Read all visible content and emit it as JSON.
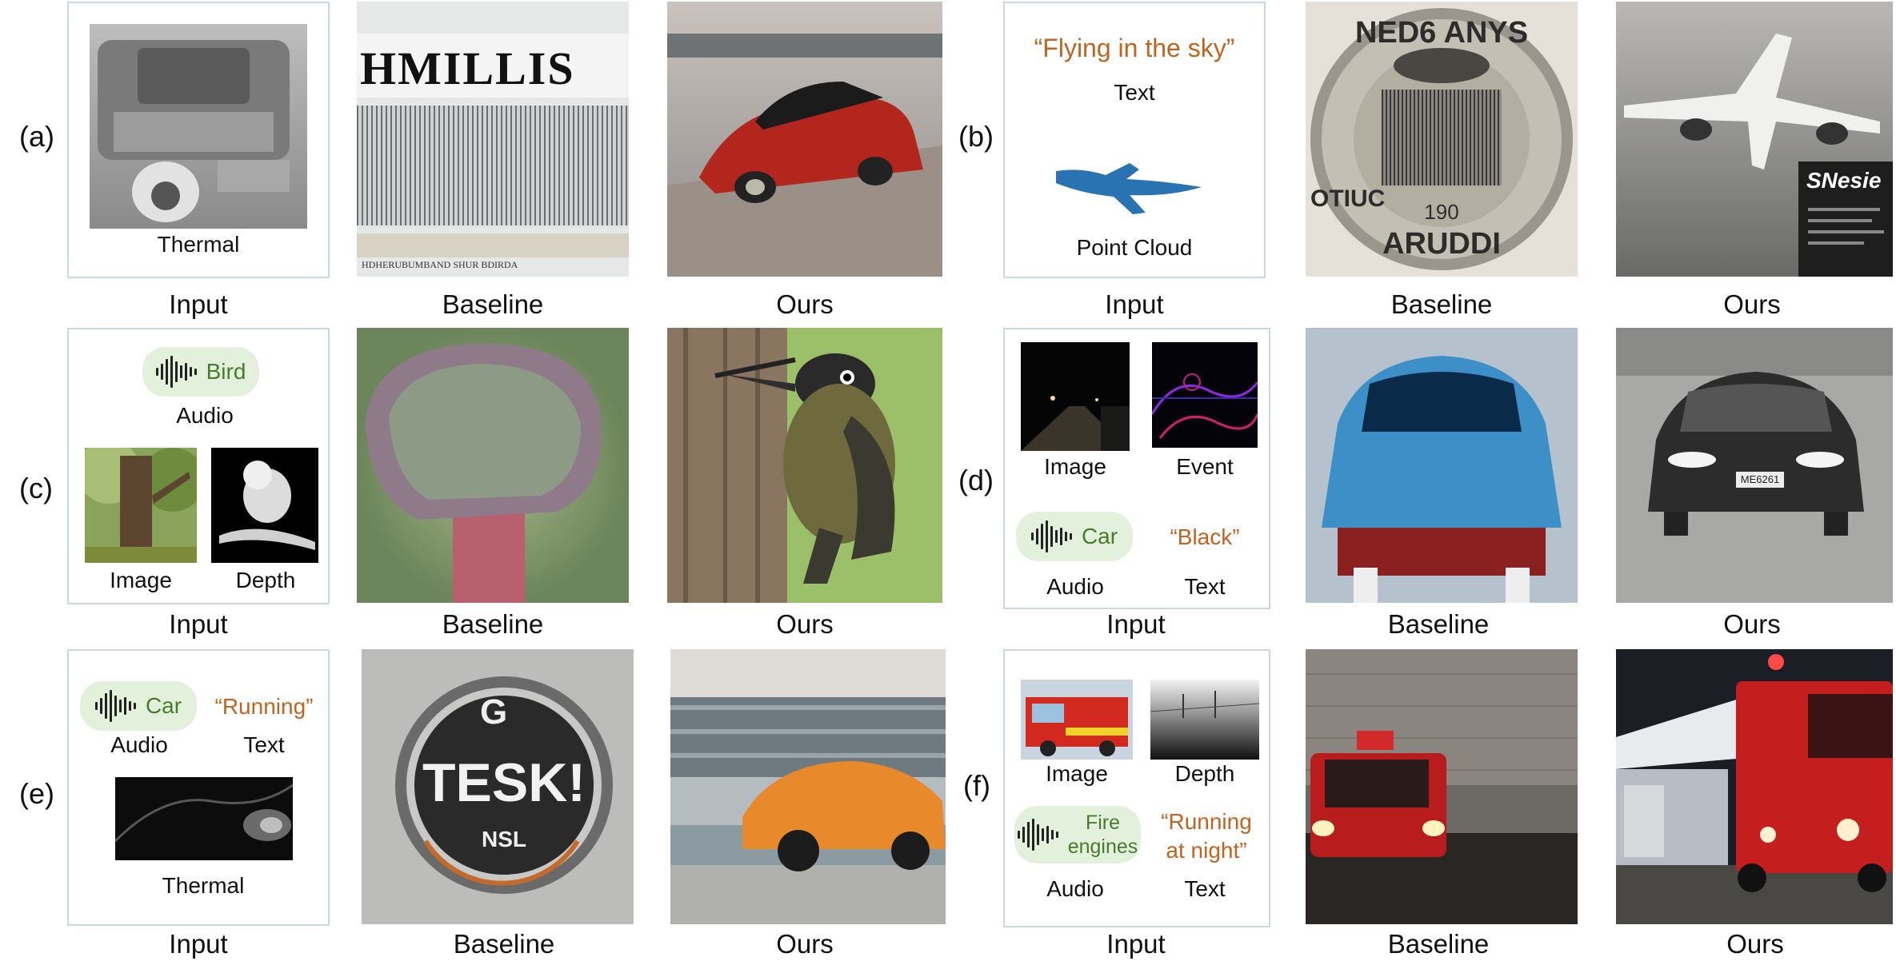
{
  "rows": {
    "a": {
      "label": "(a)",
      "input_label": "Thermal",
      "captions": [
        "Input",
        "Baseline",
        "Ours"
      ],
      "baseline_text": "HMILLIS",
      "baseline_bottom_text": "HDHERUBUMBAND SHUR BDIRDA"
    },
    "b": {
      "label": "(b)",
      "quote": "“Flying in the sky”",
      "text_label": "Text",
      "pc_label": "Point Cloud",
      "captions": [
        "Input",
        "Baseline",
        "Ours"
      ],
      "coin_top": "NED6 ANYS",
      "coin_number": "190",
      "coin_bottom": "ARUDDI",
      "coin_side": "OTIUC",
      "ours_sign": "SNesie"
    },
    "c": {
      "label": "(c)",
      "audio_word": "Bird",
      "audio_label": "Audio",
      "image_label": "Image",
      "depth_label": "Depth",
      "captions": [
        "Input",
        "Baseline",
        "Ours"
      ]
    },
    "d": {
      "label": "(d)",
      "image_label": "Image",
      "event_label": "Event",
      "audio_word": "Car",
      "quote": "“Black”",
      "audio_label": "Audio",
      "text_label": "Text",
      "captions": [
        "Input",
        "Baseline",
        "Ours"
      ],
      "plate": "ME6261"
    },
    "e": {
      "label": "(e)",
      "audio_word": "Car",
      "quote": "“Running”",
      "audio_label": "Audio",
      "text_label": "Text",
      "thermal_label": "Thermal",
      "captions": [
        "Input",
        "Baseline",
        "Ours"
      ],
      "logo_g": "G",
      "logo_main": "TESK!",
      "logo_sub": "NSL"
    },
    "f": {
      "label": "(f)",
      "image_label": "Image",
      "depth_label": "Depth",
      "audio_word_1": "Fire",
      "audio_word_2": "engines",
      "quote_1": "“Running",
      "quote_2": "at night”",
      "audio_label": "Audio",
      "text_label": "Text",
      "captions": [
        "Input",
        "Baseline",
        "Ours"
      ]
    }
  }
}
